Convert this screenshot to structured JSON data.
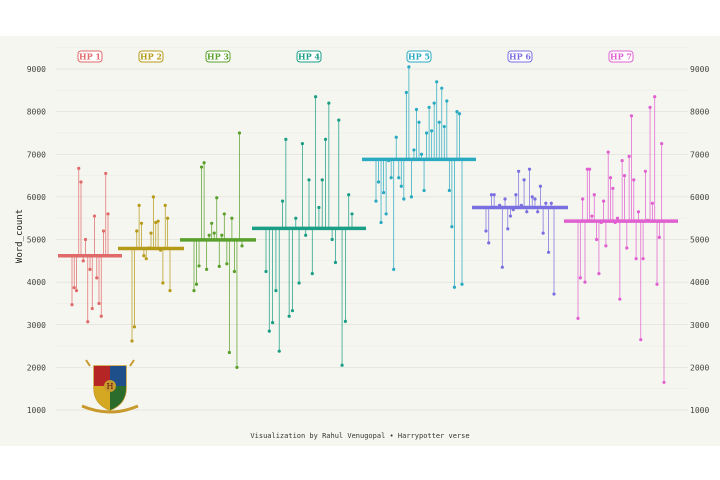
{
  "caption": "Visualization by Rahul Venugopal • Harrypotter verse",
  "logo_icon": "hogwarts-crest",
  "chart_data": {
    "type": "lollipop",
    "ylabel": "Word_count",
    "ylim": [
      800,
      9600
    ],
    "yticks": [
      1000,
      2000,
      3000,
      4000,
      5000,
      6000,
      7000,
      8000,
      9000
    ],
    "grid": true,
    "books": [
      {
        "label": "HP 1",
        "color": "#e06a6a",
        "mean": 4620,
        "values": [
          3470,
          3870,
          3800,
          6670,
          6350,
          4500,
          5000,
          3070,
          4300,
          3380,
          5550,
          4100,
          3500,
          3200,
          5200,
          6550,
          5600
        ]
      },
      {
        "label": "HP 2",
        "color": "#b59a18",
        "mean": 4790,
        "values": [
          2620,
          2950,
          5200,
          5800,
          5380,
          4620,
          4550,
          4800,
          5150,
          6000,
          5400,
          5430,
          4750,
          3980,
          5800,
          5500,
          3800
        ]
      },
      {
        "label": "HP 3",
        "color": "#5aa02c",
        "mean": 4990,
        "values": [
          3800,
          3950,
          4380,
          6700,
          6800,
          4300,
          5100,
          5380,
          5150,
          5980,
          4370,
          5100,
          5600,
          4430,
          2350,
          5500,
          4250,
          2000,
          7500,
          4850
        ]
      },
      {
        "label": "HP 4",
        "color": "#1a9e86",
        "mean": 5260,
        "values": [
          4250,
          2850,
          3050,
          3800,
          2380,
          5900,
          7350,
          3200,
          3330,
          5500,
          3980,
          7250,
          5100,
          6400,
          4200,
          8350,
          5750,
          6400,
          7350,
          8200,
          5000,
          4460,
          7800,
          2050,
          3080,
          6050,
          5600
        ]
      },
      {
        "label": "HP 5",
        "color": "#2aaac0",
        "mean": 6880,
        "values": [
          5900,
          6350,
          5400,
          6100,
          5600,
          6850,
          6450,
          4300,
          7400,
          6450,
          6250,
          5950,
          8450,
          9050,
          6000,
          7100,
          8050,
          7750,
          7000,
          6150,
          7500,
          8100,
          7550,
          8200,
          8700,
          7750,
          8550,
          7650,
          8250,
          6150,
          5300,
          3880,
          8000,
          7950,
          3950
        ]
      },
      {
        "label": "HP 6",
        "color": "#7a6fe0",
        "mean": 5750,
        "values": [
          5200,
          4920,
          6050,
          6050,
          5750,
          5800,
          4350,
          5950,
          5250,
          5550,
          5700,
          6050,
          6600,
          5800,
          6400,
          5650,
          6650,
          6000,
          5950,
          5650,
          6250,
          5150,
          5850,
          4700,
          5850,
          3720
        ]
      },
      {
        "label": "HP 7",
        "color": "#e060d0",
        "mean": 5430,
        "values": [
          3150,
          4100,
          5950,
          4000,
          6650,
          6650,
          5550,
          6050,
          5000,
          4200,
          5400,
          5900,
          4850,
          7050,
          6450,
          6200,
          5400,
          5500,
          3600,
          6850,
          6500,
          4800,
          6950,
          7900,
          6400,
          4550,
          5650,
          2650,
          4550,
          6600,
          5450,
          8100,
          5850,
          8350,
          3950,
          5050,
          7250,
          1650
        ]
      }
    ]
  }
}
